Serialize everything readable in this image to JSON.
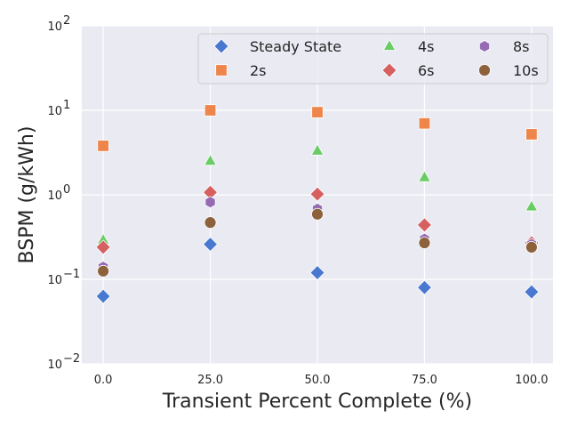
{
  "chart_data": {
    "type": "scatter",
    "title": "",
    "xlabel": "Transient Percent Complete (%)",
    "ylabel": "BSPM (g/kWh)",
    "x_scale": "linear",
    "y_scale": "log",
    "xlim": [
      -5,
      105
    ],
    "ylim": [
      0.01,
      100
    ],
    "x_ticks": [
      0,
      25,
      50,
      75,
      100
    ],
    "x_tick_labels": [
      "0.0",
      "25.0",
      "50.0",
      "75.0",
      "100.0"
    ],
    "y_ticks": [
      0.01,
      0.1,
      1,
      10,
      100
    ],
    "y_tick_labels": [
      {
        "base": "10",
        "exp": "−2"
      },
      {
        "base": "10",
        "exp": "−1"
      },
      {
        "base": "10",
        "exp": "0"
      },
      {
        "base": "10",
        "exp": "1"
      },
      {
        "base": "10",
        "exp": "2"
      }
    ],
    "grid": true,
    "background": "#eaeaf2",
    "legend_position": "top-right",
    "legend_columns": 3,
    "series": [
      {
        "name": "Steady State",
        "marker": "diamond",
        "color": "#4878d0",
        "x": [
          0,
          25,
          50,
          75,
          100
        ],
        "y": [
          0.063,
          0.26,
          0.12,
          0.08,
          0.071
        ]
      },
      {
        "name": "2s",
        "marker": "square",
        "color": "#ee854a",
        "x": [
          0,
          25,
          50,
          75,
          100
        ],
        "y": [
          3.8,
          10,
          9.5,
          7.0,
          5.2
        ]
      },
      {
        "name": "4s",
        "marker": "triangle",
        "color": "#6acc64",
        "x": [
          0,
          25,
          50,
          75,
          100
        ],
        "y": [
          0.29,
          2.5,
          3.3,
          1.6,
          0.72
        ]
      },
      {
        "name": "6s",
        "marker": "diamond",
        "color": "#d65f5f",
        "x": [
          0,
          25,
          50,
          75,
          100
        ],
        "y": [
          0.24,
          1.07,
          1.02,
          0.44,
          0.27
        ]
      },
      {
        "name": "8s",
        "marker": "hexagon",
        "color": "#956cb4",
        "x": [
          0,
          25,
          50,
          75,
          100
        ],
        "y": [
          0.14,
          0.82,
          0.68,
          0.3,
          0.26
        ]
      },
      {
        "name": "10s",
        "marker": "circle",
        "color": "#8c613c",
        "x": [
          0,
          25,
          50,
          75,
          100
        ],
        "y": [
          0.125,
          0.47,
          0.59,
          0.27,
          0.24
        ]
      }
    ]
  }
}
